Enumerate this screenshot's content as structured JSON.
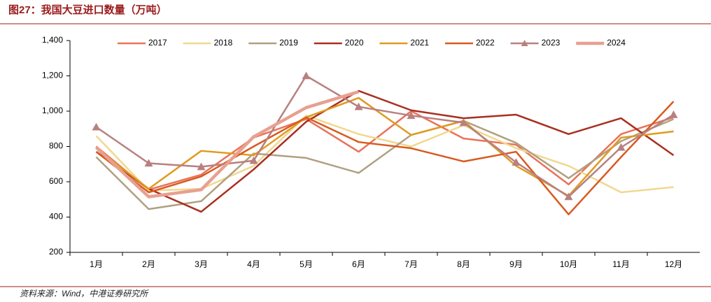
{
  "chart_data": {
    "type": "line",
    "title": "图27：我国大豆进口数量（万吨）",
    "source": "资料来源：Wind，中港证券研究所",
    "categories": [
      "1月",
      "2月",
      "3月",
      "4月",
      "5月",
      "6月",
      "7月",
      "8月",
      "9月",
      "10月",
      "11月",
      "12月"
    ],
    "ylim": [
      200,
      1400
    ],
    "yticks": [
      200,
      400,
      600,
      800,
      {
        "value": 1000,
        "label": "1,000"
      },
      {
        "value": 1200,
        "label": "1,200"
      },
      {
        "value": 1400,
        "label": "1,400"
      }
    ],
    "grid": false,
    "legend": "top",
    "series": [
      {
        "name": "2017",
        "color": "#e8735a",
        "width": 2.5,
        "values": [
          800,
          555,
          640,
          850,
          955,
          770,
          1000,
          845,
          810,
          585,
          870,
          965
        ]
      },
      {
        "name": "2018",
        "color": "#f0d890",
        "width": 2.5,
        "values": [
          860,
          550,
          560,
          690,
          975,
          870,
          800,
          920,
          790,
          690,
          540,
          570
        ]
      },
      {
        "name": "2019",
        "color": "#b0a080",
        "width": 2.5,
        "values": [
          740,
          445,
          490,
          760,
          735,
          650,
          865,
          945,
          820,
          620,
          830,
          955
        ]
      },
      {
        "name": "2020",
        "color": "#a83020",
        "width": 2.5,
        "values": [
          770,
          560,
          430,
          670,
          940,
          1115,
          1005,
          960,
          980,
          870,
          960,
          750
        ]
      },
      {
        "name": "2021",
        "color": "#e09a20",
        "width": 2.5,
        "values": [
          790,
          560,
          775,
          750,
          965,
          1075,
          865,
          945,
          690,
          520,
          850,
          885
        ]
      },
      {
        "name": "2022",
        "color": "#d85a20",
        "width": 2.5,
        "values": [
          770,
          540,
          630,
          800,
          965,
          825,
          790,
          715,
          770,
          415,
          740,
          1055
        ]
      },
      {
        "name": "2023",
        "color": "#b88080",
        "width": 2.5,
        "marker": "triangle",
        "values": [
          910,
          705,
          685,
          720,
          1200,
          1025,
          975,
          935,
          710,
          515,
          795,
          980
        ]
      },
      {
        "name": "2024",
        "color": "#e8a090",
        "width": 4.5,
        "values": [
          795,
          515,
          555,
          855,
          1020,
          1110,
          null,
          null,
          null,
          null,
          null,
          null
        ]
      }
    ]
  }
}
